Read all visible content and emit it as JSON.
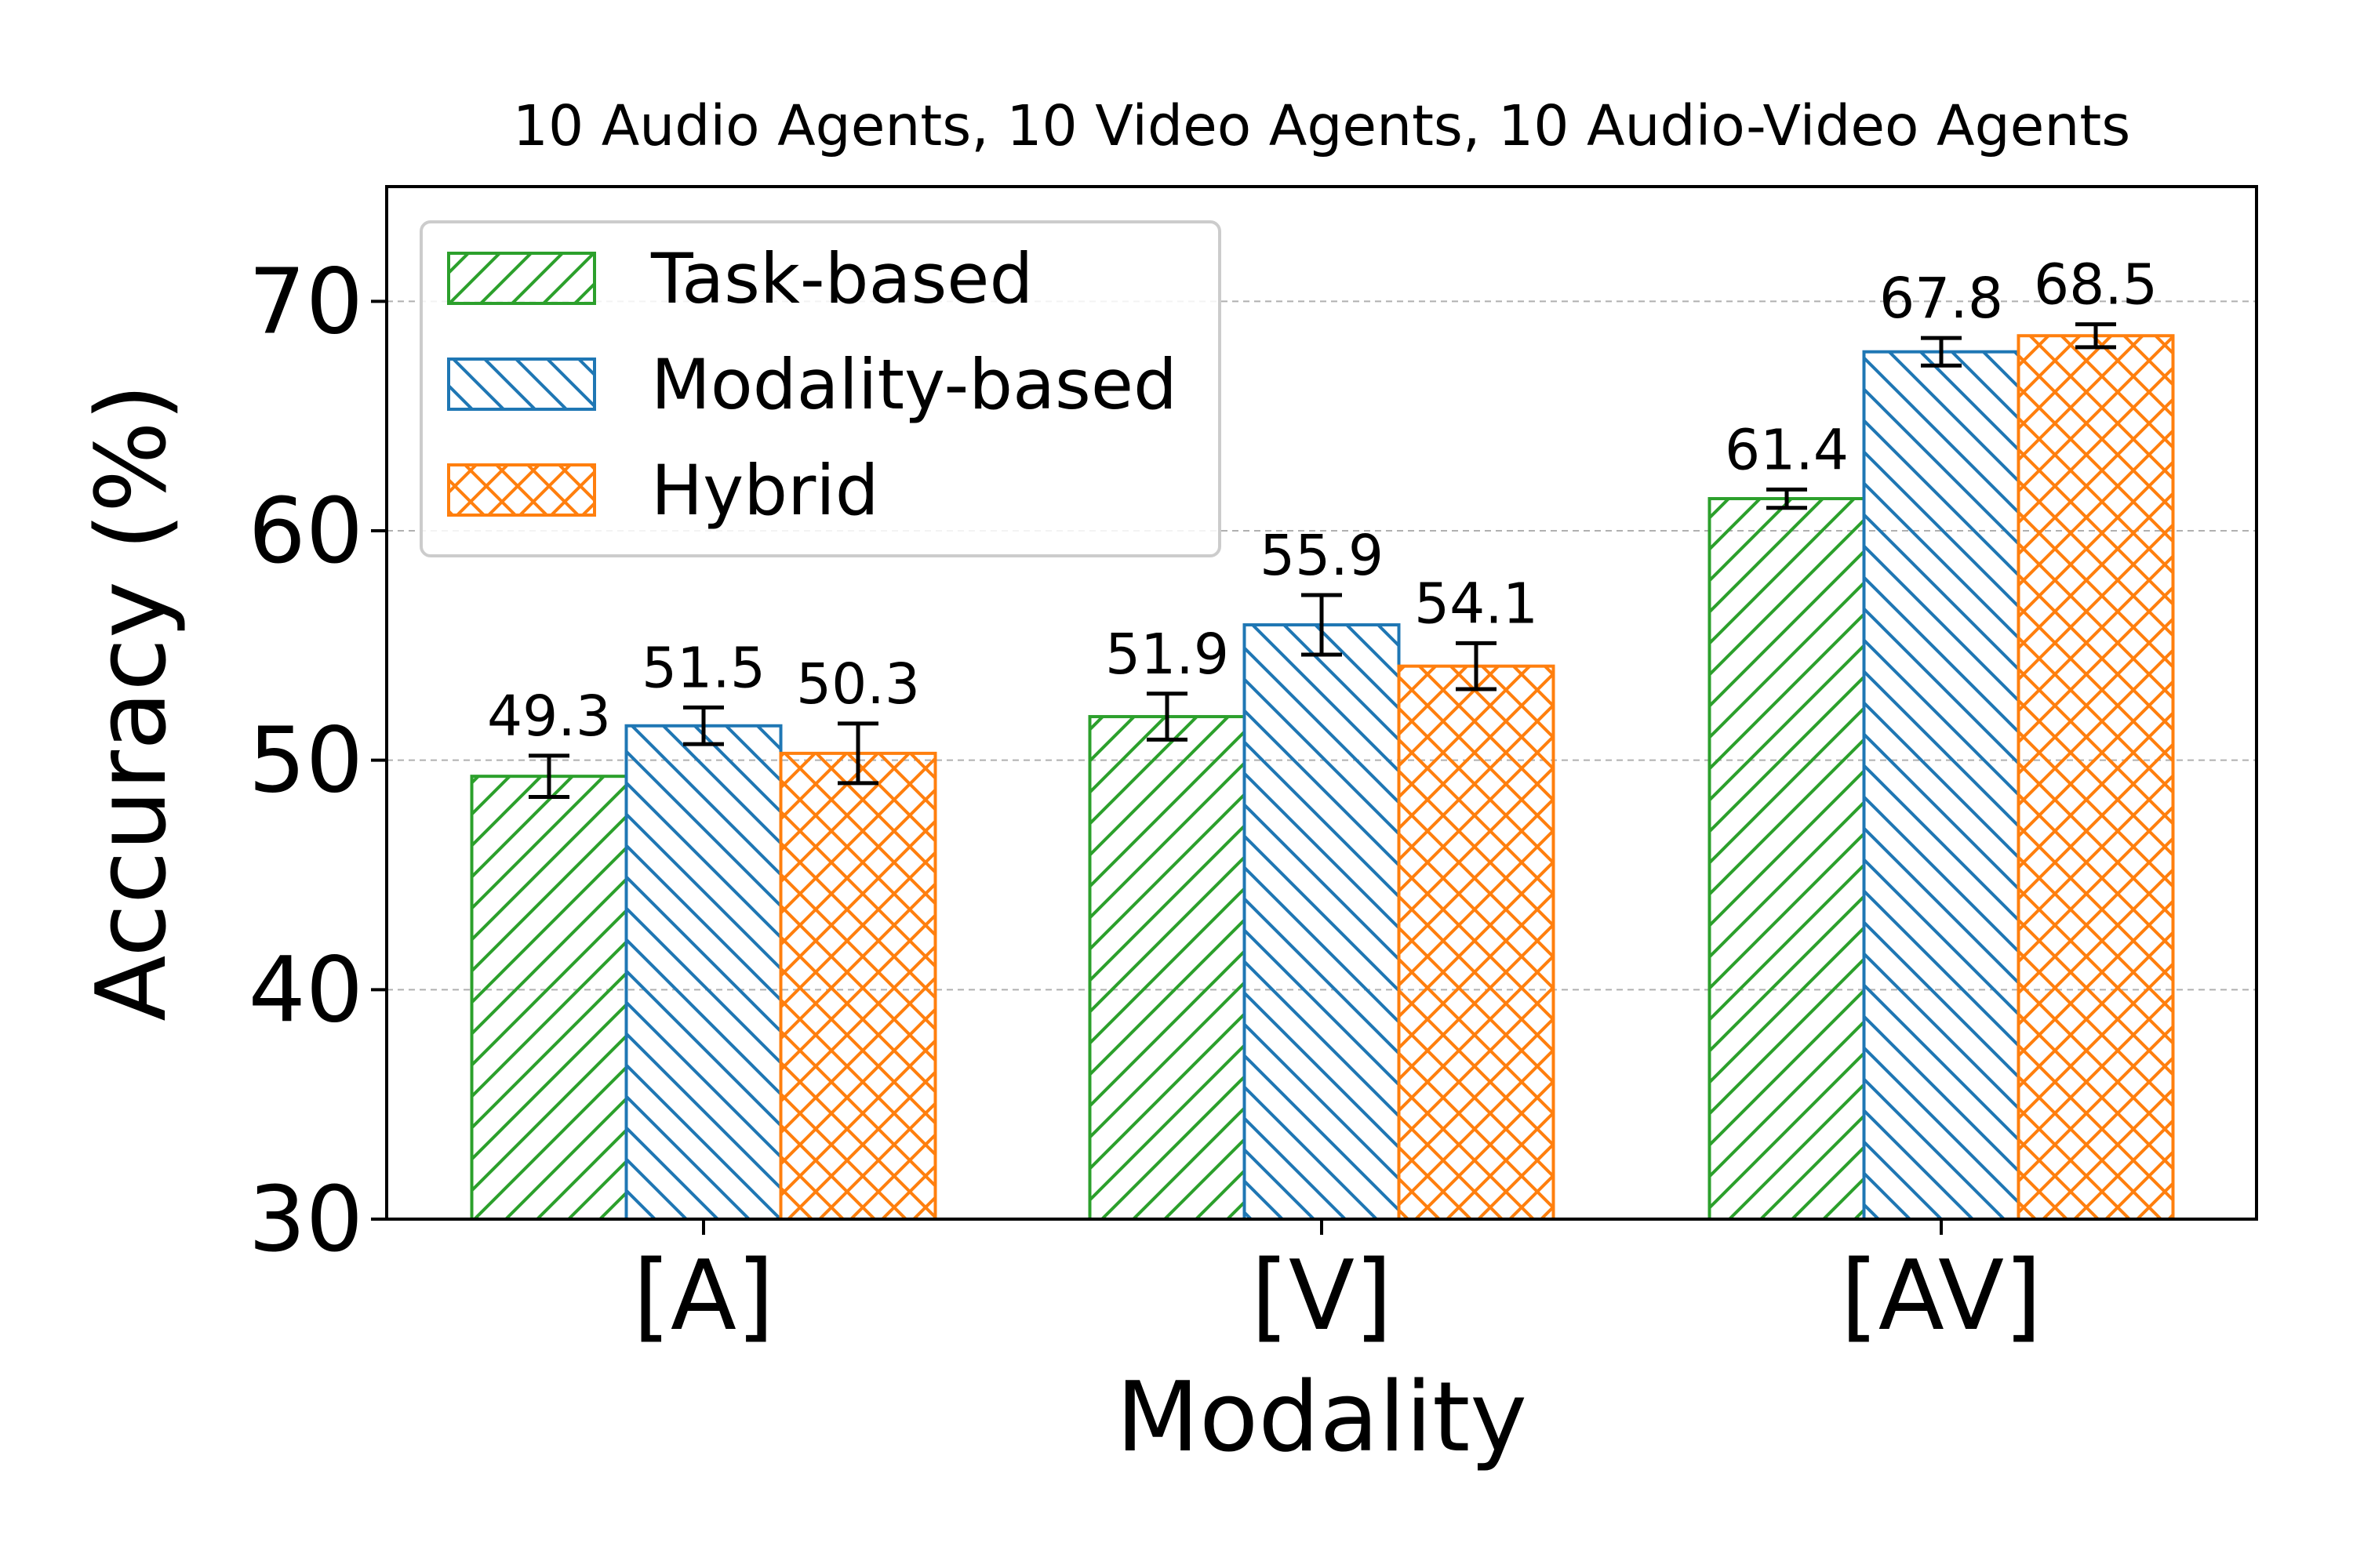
{
  "chart_data": {
    "type": "bar",
    "title": "10 Audio Agents, 10 Video Agents, 10 Audio-Video Agents",
    "xlabel": "Modality",
    "ylabel": "Accuracy (%)",
    "ylim": [
      30,
      75
    ],
    "yticks": [
      30,
      40,
      50,
      60,
      70
    ],
    "categories": [
      "[A]",
      "[V]",
      "[AV]"
    ],
    "grid": "horizontal dashed",
    "legend_position": "top-left",
    "series": [
      {
        "name": "Task-based",
        "color": "#2ca02c",
        "hatch": "diagonal-forward",
        "values": [
          49.3,
          51.9,
          61.4
        ],
        "errors": [
          0.9,
          1.0,
          0.4
        ],
        "labels": [
          "49.3",
          "51.9",
          "61.4"
        ]
      },
      {
        "name": "Modality-based",
        "color": "#1f77b4",
        "hatch": "diagonal-back",
        "values": [
          51.5,
          55.9,
          67.8
        ],
        "errors": [
          0.8,
          1.3,
          0.6
        ],
        "labels": [
          "51.5",
          "55.9",
          "67.8"
        ]
      },
      {
        "name": "Hybrid",
        "color": "#ff7f0e",
        "hatch": "crosshatch",
        "values": [
          50.3,
          54.1,
          68.5
        ],
        "errors": [
          1.3,
          1.0,
          0.5
        ],
        "labels": [
          "50.3",
          "54.1",
          "68.5"
        ]
      }
    ]
  }
}
